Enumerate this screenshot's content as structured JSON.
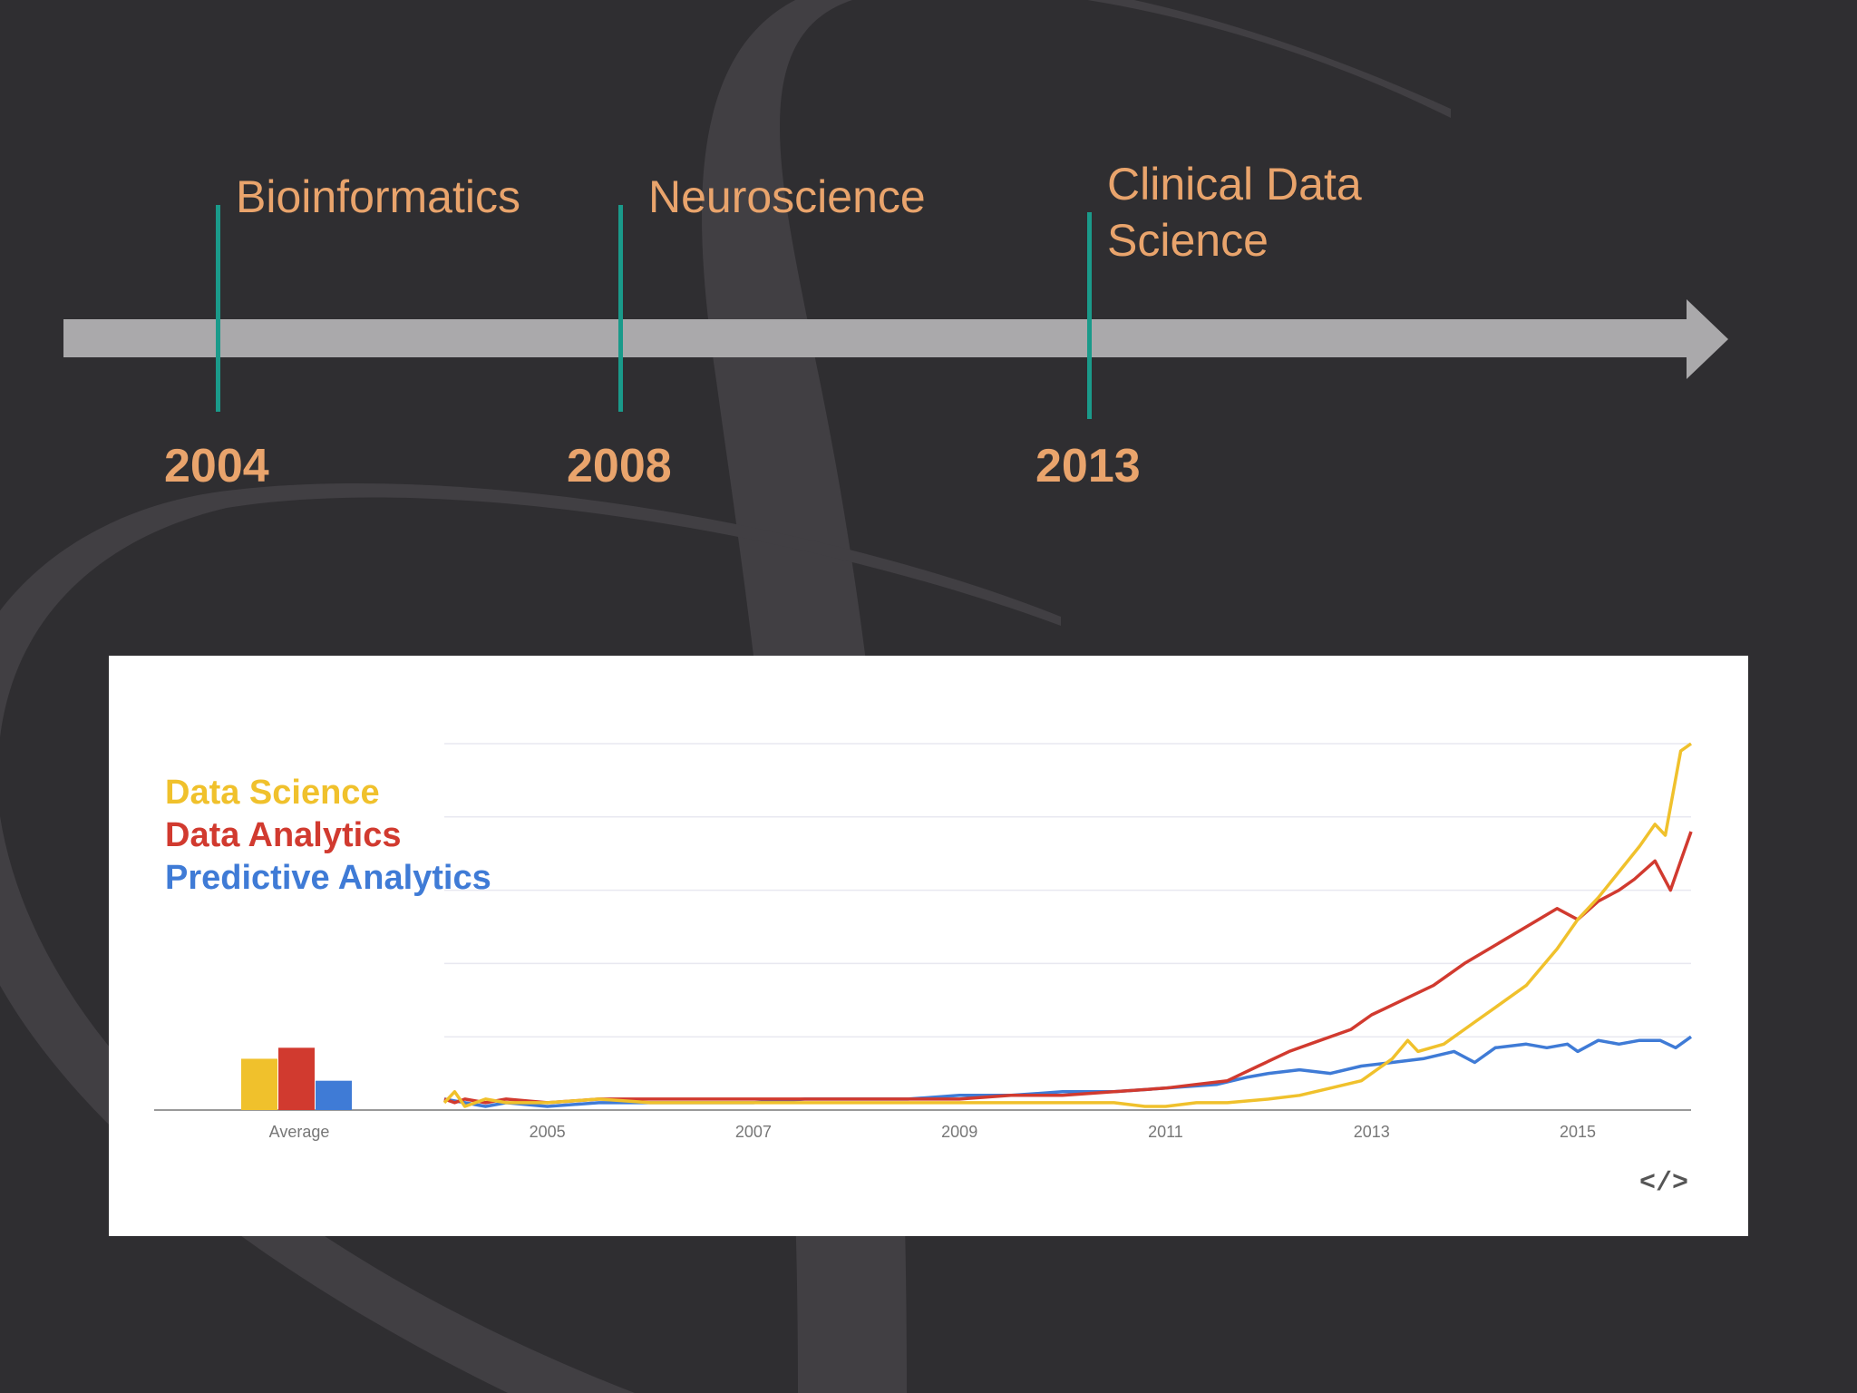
{
  "timeline": {
    "milestones": [
      {
        "label": "Bioinformatics",
        "year": "2004"
      },
      {
        "label": "Neuroscience",
        "year": "2008"
      },
      {
        "label": "Clinical Data\nScience",
        "year": "2013"
      }
    ],
    "colors": {
      "arrow": "#aaa9ab",
      "tick": "#1a9a8a",
      "text": "#e9a46c"
    }
  },
  "chart_data": {
    "type": "line",
    "title": "",
    "xlabel": "",
    "ylabel": "",
    "ylim": [
      0,
      100
    ],
    "grid": true,
    "legend_position": "top-left",
    "x_tick_labels": [
      "2005",
      "2007",
      "2009",
      "2011",
      "2013",
      "2015"
    ],
    "average_label": "Average",
    "series": [
      {
        "name": "Data Science",
        "color": "#f0c12c",
        "average": 14,
        "points": [
          [
            2004.0,
            2
          ],
          [
            2004.1,
            5
          ],
          [
            2004.2,
            1
          ],
          [
            2004.4,
            3
          ],
          [
            2004.6,
            2
          ],
          [
            2005.0,
            2
          ],
          [
            2005.5,
            3
          ],
          [
            2006.0,
            2
          ],
          [
            2006.5,
            2
          ],
          [
            2007.0,
            2
          ],
          [
            2007.5,
            2
          ],
          [
            2008.0,
            2
          ],
          [
            2008.5,
            2
          ],
          [
            2009.0,
            2
          ],
          [
            2009.5,
            2
          ],
          [
            2010.0,
            2
          ],
          [
            2010.5,
            2
          ],
          [
            2010.8,
            1
          ],
          [
            2011.0,
            1
          ],
          [
            2011.3,
            2
          ],
          [
            2011.6,
            2
          ],
          [
            2012.0,
            3
          ],
          [
            2012.3,
            4
          ],
          [
            2012.6,
            6
          ],
          [
            2012.9,
            8
          ],
          [
            2013.2,
            14
          ],
          [
            2013.35,
            19
          ],
          [
            2013.45,
            16
          ],
          [
            2013.7,
            18
          ],
          [
            2014.0,
            24
          ],
          [
            2014.2,
            28
          ],
          [
            2014.5,
            34
          ],
          [
            2014.8,
            44
          ],
          [
            2015.0,
            52
          ],
          [
            2015.2,
            58
          ],
          [
            2015.4,
            65
          ],
          [
            2015.6,
            72
          ],
          [
            2015.75,
            78
          ],
          [
            2015.85,
            75
          ],
          [
            2016.0,
            98
          ],
          [
            2016.1,
            100
          ]
        ]
      },
      {
        "name": "Data Analytics",
        "color": "#d13a2f",
        "average": 17,
        "points": [
          [
            2004.0,
            3
          ],
          [
            2004.1,
            2
          ],
          [
            2004.2,
            3
          ],
          [
            2004.4,
            2
          ],
          [
            2004.6,
            3
          ],
          [
            2005.0,
            2
          ],
          [
            2005.5,
            3
          ],
          [
            2006.0,
            3
          ],
          [
            2006.5,
            3
          ],
          [
            2007.0,
            3
          ],
          [
            2007.5,
            3
          ],
          [
            2008.0,
            3
          ],
          [
            2008.5,
            3
          ],
          [
            2009.0,
            3
          ],
          [
            2009.5,
            4
          ],
          [
            2010.0,
            4
          ],
          [
            2010.5,
            5
          ],
          [
            2011.0,
            6
          ],
          [
            2011.3,
            7
          ],
          [
            2011.6,
            8
          ],
          [
            2011.9,
            12
          ],
          [
            2012.2,
            16
          ],
          [
            2012.5,
            19
          ],
          [
            2012.8,
            22
          ],
          [
            2013.0,
            26
          ],
          [
            2013.3,
            30
          ],
          [
            2013.6,
            34
          ],
          [
            2013.9,
            40
          ],
          [
            2014.2,
            45
          ],
          [
            2014.5,
            50
          ],
          [
            2014.8,
            55
          ],
          [
            2015.0,
            52
          ],
          [
            2015.2,
            57
          ],
          [
            2015.4,
            60
          ],
          [
            2015.55,
            63
          ],
          [
            2015.75,
            68
          ],
          [
            2015.9,
            60
          ],
          [
            2016.0,
            68
          ],
          [
            2016.1,
            76
          ]
        ]
      },
      {
        "name": "Predictive Analytics",
        "color": "#3f7bd6",
        "average": 8,
        "points": [
          [
            2004.0,
            3
          ],
          [
            2004.2,
            2
          ],
          [
            2004.4,
            1
          ],
          [
            2004.6,
            2
          ],
          [
            2005.0,
            1
          ],
          [
            2005.5,
            2
          ],
          [
            2006.0,
            2
          ],
          [
            2006.5,
            2
          ],
          [
            2007.0,
            2
          ],
          [
            2007.5,
            3
          ],
          [
            2008.0,
            3
          ],
          [
            2008.5,
            3
          ],
          [
            2009.0,
            4
          ],
          [
            2009.5,
            4
          ],
          [
            2010.0,
            5
          ],
          [
            2010.5,
            5
          ],
          [
            2011.0,
            6
          ],
          [
            2011.5,
            7
          ],
          [
            2011.8,
            9
          ],
          [
            2012.0,
            10
          ],
          [
            2012.3,
            11
          ],
          [
            2012.6,
            10
          ],
          [
            2012.9,
            12
          ],
          [
            2013.2,
            13
          ],
          [
            2013.5,
            14
          ],
          [
            2013.8,
            16
          ],
          [
            2014.0,
            13
          ],
          [
            2014.2,
            17
          ],
          [
            2014.5,
            18
          ],
          [
            2014.7,
            17
          ],
          [
            2014.9,
            18
          ],
          [
            2015.0,
            16
          ],
          [
            2015.2,
            19
          ],
          [
            2015.4,
            18
          ],
          [
            2015.6,
            19
          ],
          [
            2015.8,
            19
          ],
          [
            2015.95,
            17
          ],
          [
            2016.1,
            20
          ]
        ]
      }
    ]
  },
  "chart_panel": {
    "embed_icon": "</>"
  }
}
